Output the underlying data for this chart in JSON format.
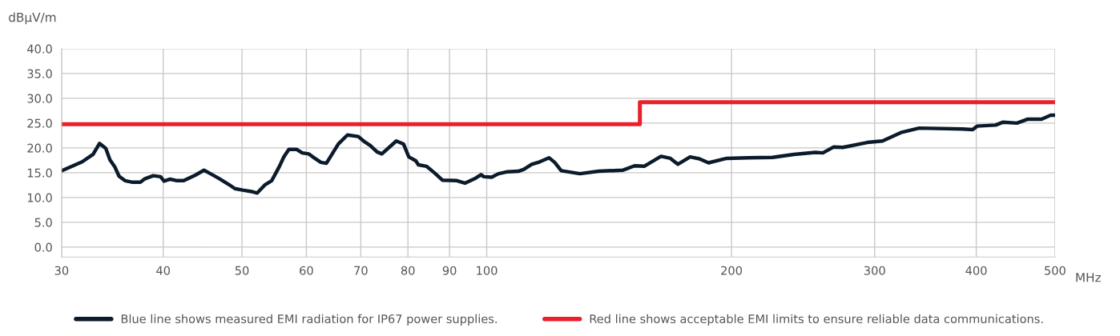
{
  "chart_data": {
    "type": "line",
    "xlabel": "MHz",
    "ylabel": "dBμV/m",
    "log": "x",
    "xlim": [
      30,
      500
    ],
    "xticks": [
      30,
      40,
      50,
      60,
      70,
      80,
      90,
      100,
      200,
      300,
      400,
      500
    ],
    "ylim": [
      -2,
      40
    ],
    "yticks": [
      {
        "value": 0,
        "label": "0.0"
      },
      {
        "value": 5,
        "label": "5.0"
      },
      {
        "value": 10,
        "label": "10.0"
      },
      {
        "value": 15,
        "label": "15.0"
      },
      {
        "value": 20,
        "label": "20.0"
      },
      {
        "value": 25,
        "label": "25.0"
      },
      {
        "value": 30,
        "label": "30.0"
      },
      {
        "value": 35,
        "label": "35.0"
      },
      {
        "value": 40,
        "label": "40.0"
      }
    ],
    "grid": true,
    "legend": "bottom",
    "series": [
      {
        "name": "Blue line shows measured EMI radiation for IP67 power supplies.",
        "color": "#0b1b2c",
        "x": [
          30.0,
          31.8,
          32.8,
          33.4,
          34.0,
          34.4,
          34.9,
          35.3,
          35.9,
          36.6,
          37.5,
          38.0,
          38.9,
          39.7,
          40.1,
          40.8,
          41.6,
          42.4,
          43.8,
          44.9,
          45.5,
          46.9,
          48.2,
          49.0,
          50.1,
          51.4,
          52.2,
          53.4,
          54.4,
          55.6,
          56.3,
          57.1,
          58.4,
          59.3,
          60.4,
          61.1,
          62.5,
          63.5,
          65.7,
          67.4,
          69.5,
          70.8,
          71.9,
          73.3,
          74.3,
          77.4,
          79.0,
          80.2,
          81.8,
          82.4,
          84.3,
          86.2,
          88.2,
          91.9,
          94.0,
          96.9,
          98.4,
          99.2,
          101.4,
          103.4,
          106.1,
          109.4,
          111.1,
          113.6,
          116.2,
          119.3,
          121.2,
          123.5,
          130.2,
          137.3,
          146.9,
          152.0,
          156.2,
          163.8,
          168.2,
          171.8,
          177.9,
          182.6,
          187.4,
          197.3,
          209.6,
          224.6,
          238.7,
          253.7,
          259.1,
          267.2,
          274.1,
          293.8,
          306.7,
          323.2,
          340.3,
          384.2,
          396.0,
          401.1,
          422.5,
          431.7,
          448.9,
          462.9,
          481.2,
          493.9,
          500
        ],
        "values": [
          15.4,
          17.2,
          18.7,
          20.9,
          19.9,
          17.6,
          16.1,
          14.3,
          13.4,
          13.1,
          13.1,
          13.8,
          14.4,
          14.2,
          13.3,
          13.7,
          13.4,
          13.4,
          14.5,
          15.5,
          15.0,
          13.8,
          12.6,
          11.8,
          11.5,
          11.2,
          10.9,
          12.6,
          13.4,
          16.3,
          18.2,
          19.7,
          19.7,
          19.0,
          18.8,
          18.2,
          17.1,
          16.9,
          20.8,
          22.6,
          22.3,
          21.2,
          20.5,
          19.2,
          18.8,
          21.4,
          20.8,
          18.2,
          17.4,
          16.6,
          16.3,
          15.0,
          13.5,
          13.4,
          12.9,
          13.9,
          14.6,
          14.2,
          14.1,
          14.8,
          15.2,
          15.3,
          15.7,
          16.7,
          17.2,
          18.0,
          17.1,
          15.4,
          14.8,
          15.3,
          15.5,
          16.4,
          16.3,
          18.3,
          17.9,
          16.7,
          18.2,
          17.8,
          17.0,
          17.9,
          18.0,
          18.1,
          18.7,
          19.1,
          19.0,
          20.2,
          20.1,
          21.1,
          21.4,
          23.1,
          24.0,
          23.8,
          23.7,
          24.4,
          24.6,
          25.2,
          25.0,
          25.8,
          25.8,
          26.6,
          26.6
        ]
      },
      {
        "name": "Red line shows acceptable EMI limits to ensure reliable data communications.",
        "type": "step",
        "color": "#e8202a",
        "x": [
          30,
          154.3,
          500
        ],
        "values": [
          24.8,
          29.2,
          29.2
        ]
      }
    ]
  }
}
